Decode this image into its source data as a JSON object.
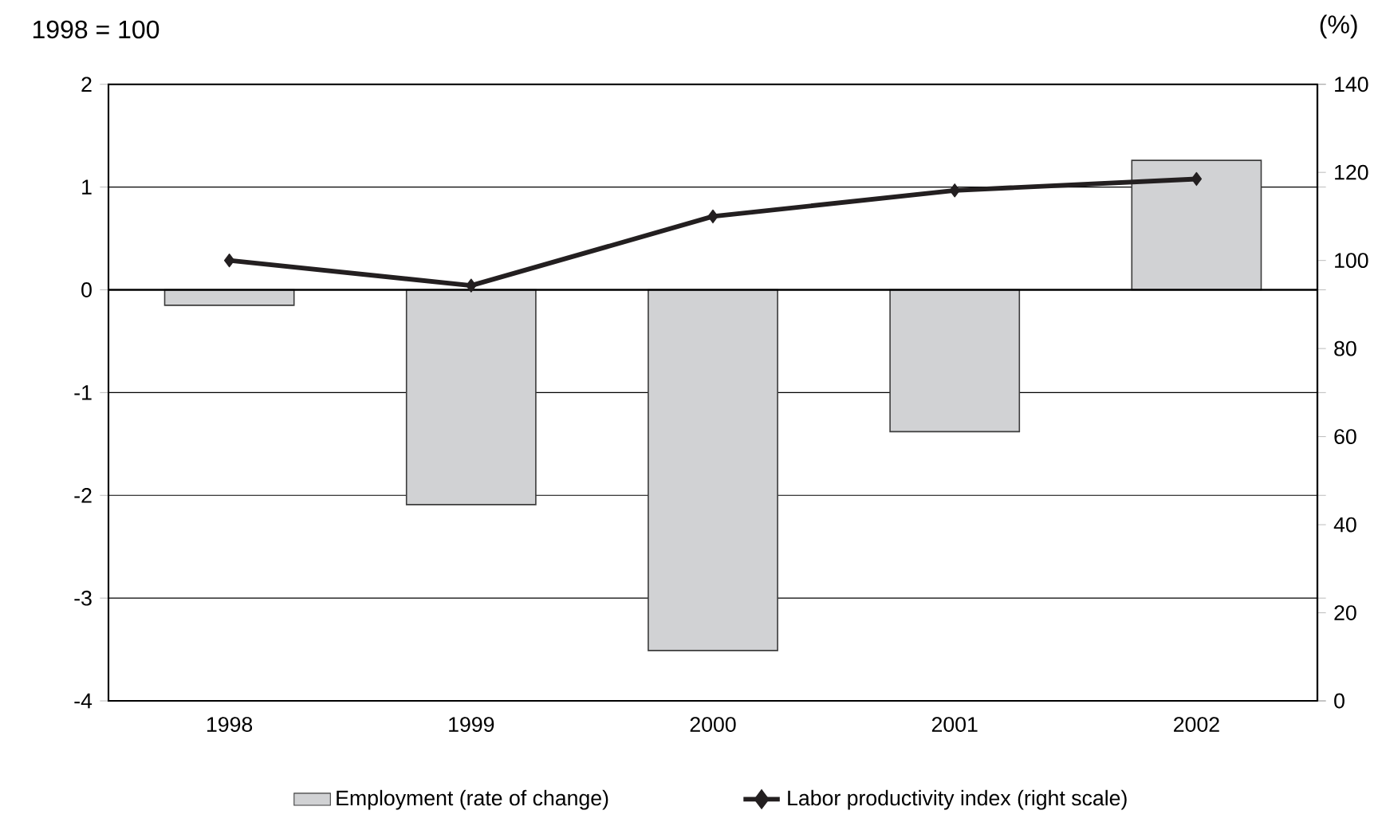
{
  "chart_data": {
    "type": "bar",
    "ylabel": "1998 = 100",
    "y2label": "(%)",
    "categories": [
      "1998",
      "1999",
      "2000",
      "2001",
      "2002"
    ],
    "series": [
      {
        "name": "Employment (rate of change)",
        "color": "#d1d2d4",
        "values": [
          -0.15,
          -2.09,
          -3.51,
          -1.38,
          1.26
        ]
      },
      {
        "name": "Labor productivity index (right scale)",
        "type": "line",
        "axis": "y2",
        "color": "#231f20",
        "values": [
          100,
          94.3,
          110.0,
          115.9,
          118.5
        ]
      }
    ],
    "marker": "diamond",
    "ylim": [
      -4,
      2
    ],
    "yticks": [
      -4,
      -3,
      -2,
      -1,
      0,
      1,
      2
    ],
    "y2lim": [
      0,
      140
    ],
    "y2ticks": [
      0,
      20,
      40,
      60,
      80,
      100,
      120,
      140
    ],
    "grid": "y",
    "legend": "bottom"
  }
}
